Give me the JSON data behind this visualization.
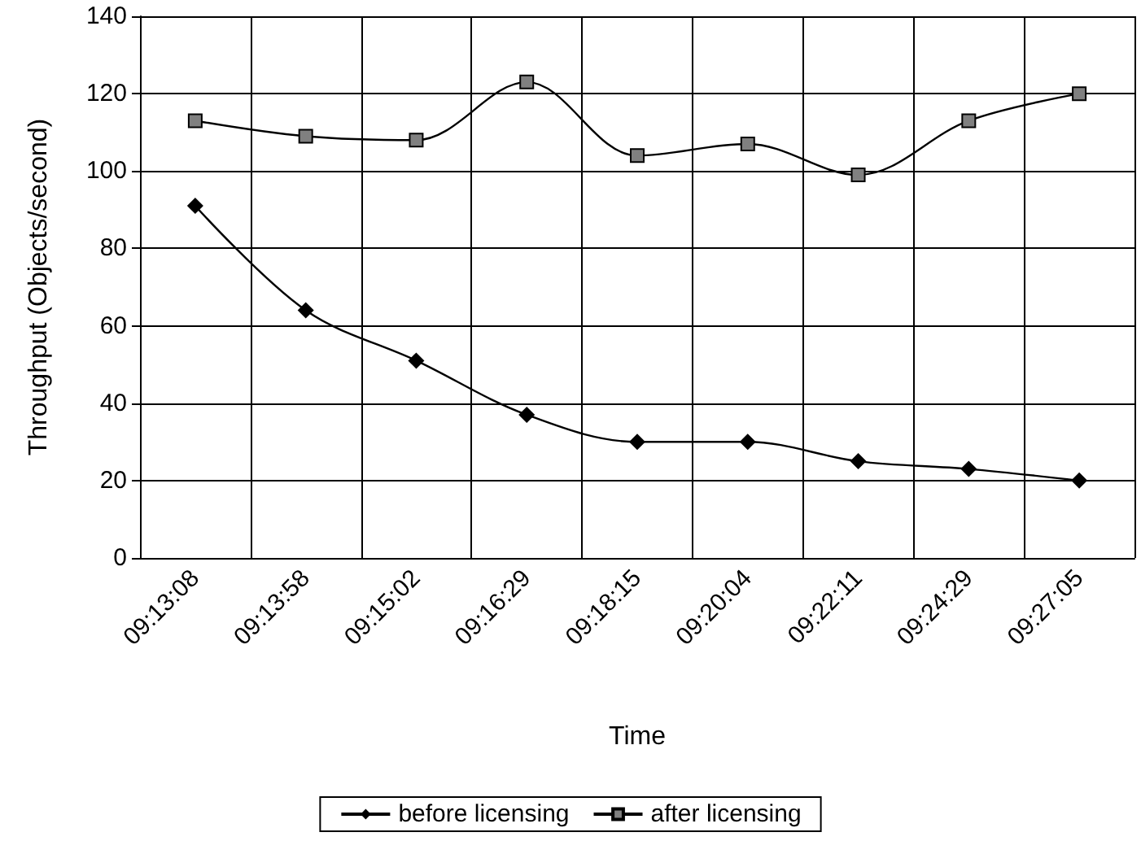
{
  "chart_data": {
    "type": "line",
    "xlabel": "Time",
    "ylabel": "Throughput (Objects/second)",
    "categories": [
      "09:13:08",
      "09:13:58",
      "09:15:02",
      "09:16:29",
      "09:18:15",
      "09:20:04",
      "09:22:11",
      "09:24:29",
      "09:27:05"
    ],
    "series": [
      {
        "name": "before licensing",
        "color": "#000000",
        "marker": "diamond",
        "values": [
          91,
          64,
          51,
          37,
          30,
          30,
          25,
          23,
          20
        ]
      },
      {
        "name": "after licensing",
        "color": "#808080",
        "marker": "square",
        "values": [
          113,
          109,
          108,
          123,
          104,
          107,
          99,
          113,
          120
        ]
      }
    ],
    "ylim": [
      0,
      140
    ],
    "yticks": [
      0,
      20,
      40,
      60,
      80,
      100,
      120,
      140
    ],
    "grid": true,
    "legend": "bottom"
  }
}
